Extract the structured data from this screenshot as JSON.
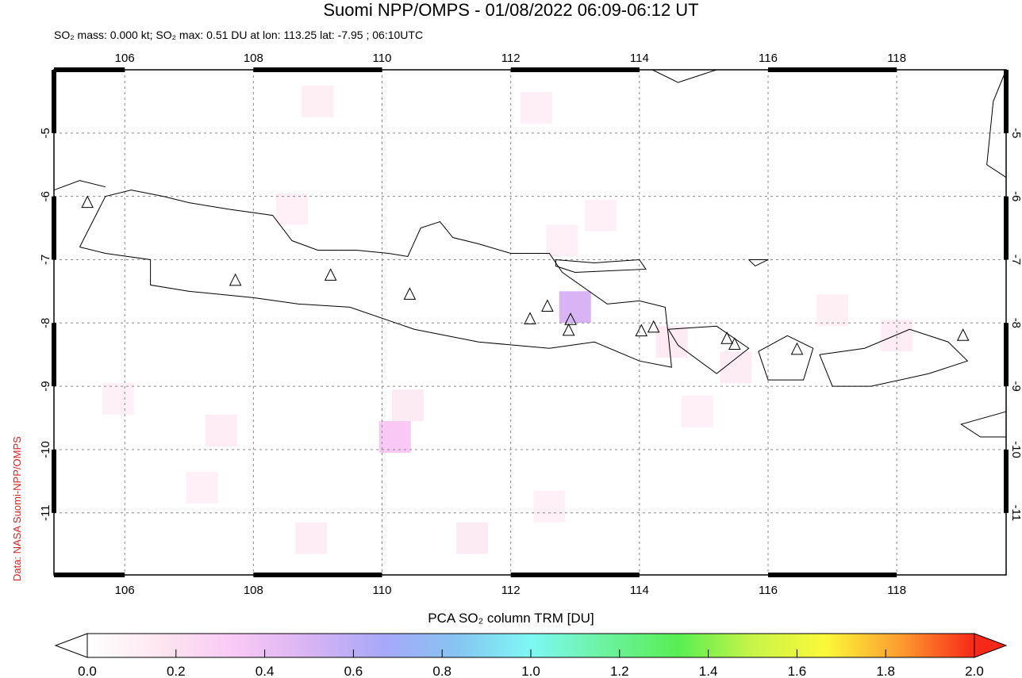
{
  "title": "Suomi NPP/OMPS - 01/08/2022 06:09-06:12 UT",
  "subtitle": "SO₂ mass: 0.000 kt; SO₂ max: 0.51 DU at lon: 113.25 lat: -7.95 ; 06:10UTC",
  "credit": "Data: NASA Suomi-NPP/OMPS",
  "colorbar": {
    "title": "PCA SO₂ column TRM [DU]",
    "ticks": [
      "0.0",
      "0.2",
      "0.4",
      "0.6",
      "0.8",
      "1.0",
      "1.2",
      "1.4",
      "1.6",
      "1.8",
      "2.0"
    ],
    "range": [
      0,
      2
    ],
    "stops": [
      "#ffffff",
      "#fde6f0",
      "#f9c8f5",
      "#d8b4f4",
      "#a8a8f8",
      "#86c4f2",
      "#7ef8f4",
      "#6cf2a0",
      "#58ee52",
      "#c8f448",
      "#fcf838",
      "#fc9c30",
      "#f82818"
    ]
  },
  "map": {
    "lon_range": [
      104.9,
      119.7
    ],
    "lat_range": [
      -11.98,
      -4.0
    ],
    "lon_ticks": [
      "106",
      "108",
      "110",
      "112",
      "114",
      "116",
      "118"
    ],
    "lat_ticks": [
      "-5",
      "-6",
      "-7",
      "-8",
      "-9",
      "-10",
      "-11"
    ],
    "volcanoes": [
      [
        105.42,
        -6.1
      ],
      [
        107.72,
        -7.33
      ],
      [
        109.2,
        -7.25
      ],
      [
        110.43,
        -7.55
      ],
      [
        112.3,
        -7.94
      ],
      [
        112.57,
        -7.74
      ],
      [
        112.93,
        -7.95
      ],
      [
        112.9,
        -8.12
      ],
      [
        114.03,
        -8.13
      ],
      [
        114.22,
        -8.07
      ],
      [
        115.36,
        -8.25
      ],
      [
        115.48,
        -8.34
      ],
      [
        116.45,
        -8.42
      ],
      [
        119.03,
        -8.2
      ]
    ],
    "so2_cells": [
      [
        113.0,
        -7.75,
        0.51
      ],
      [
        114.5,
        -8.3,
        0.22
      ],
      [
        115.5,
        -8.7,
        0.18
      ],
      [
        117.0,
        -7.8,
        0.12
      ],
      [
        118.0,
        -8.2,
        0.15
      ],
      [
        110.2,
        -9.8,
        0.3
      ],
      [
        110.4,
        -9.3,
        0.2
      ],
      [
        107.5,
        -9.7,
        0.15
      ],
      [
        108.9,
        -11.4,
        0.15
      ],
      [
        111.4,
        -11.4,
        0.2
      ],
      [
        105.9,
        -9.2,
        0.1
      ],
      [
        112.8,
        -6.7,
        0.1
      ],
      [
        112.4,
        -4.6,
        0.14
      ],
      [
        109.0,
        -4.5,
        0.12
      ],
      [
        108.6,
        -6.2,
        0.1
      ],
      [
        113.4,
        -6.3,
        0.1
      ],
      [
        116.9,
        -10.3,
        0.08
      ],
      [
        114.9,
        -9.4,
        0.1
      ],
      [
        112.6,
        -10.9,
        0.1
      ],
      [
        107.2,
        -10.6,
        0.1
      ],
      [
        117.9,
        -7.5,
        0.08
      ]
    ],
    "coastlines": [
      [
        [
          105.3,
          -6.8
        ],
        [
          105.7,
          -6.0
        ],
        [
          106.1,
          -5.9
        ],
        [
          106.6,
          -6.0
        ],
        [
          107.0,
          -6.1
        ],
        [
          107.6,
          -6.2
        ],
        [
          108.3,
          -6.3
        ],
        [
          108.6,
          -6.7
        ],
        [
          109.0,
          -6.85
        ],
        [
          109.6,
          -6.85
        ],
        [
          110.1,
          -6.9
        ],
        [
          110.4,
          -6.95
        ],
        [
          110.6,
          -6.5
        ],
        [
          110.9,
          -6.4
        ],
        [
          111.1,
          -6.65
        ],
        [
          111.5,
          -6.75
        ],
        [
          112.0,
          -6.9
        ],
        [
          112.6,
          -6.9
        ],
        [
          112.8,
          -7.2
        ],
        [
          113.5,
          -7.7
        ],
        [
          114.0,
          -7.65
        ],
        [
          114.4,
          -7.75
        ],
        [
          114.45,
          -8.2
        ],
        [
          114.5,
          -8.7
        ],
        [
          114.0,
          -8.6
        ],
        [
          113.3,
          -8.3
        ],
        [
          112.6,
          -8.4
        ],
        [
          111.5,
          -8.3
        ],
        [
          110.5,
          -8.1
        ],
        [
          109.5,
          -7.75
        ],
        [
          108.7,
          -7.7
        ],
        [
          108.0,
          -7.6
        ],
        [
          107.0,
          -7.5
        ],
        [
          106.4,
          -7.4
        ],
        [
          106.4,
          -7.0
        ],
        [
          105.7,
          -6.9
        ],
        [
          105.3,
          -6.8
        ]
      ],
      [
        [
          112.7,
          -7.0
        ],
        [
          113.3,
          -7.05
        ],
        [
          114.0,
          -7.0
        ],
        [
          114.1,
          -7.15
        ],
        [
          113.0,
          -7.2
        ],
        [
          112.7,
          -7.1
        ],
        [
          112.7,
          -7.0
        ]
      ],
      [
        [
          114.45,
          -8.1
        ],
        [
          115.2,
          -8.05
        ],
        [
          115.7,
          -8.4
        ],
        [
          115.2,
          -8.8
        ],
        [
          114.6,
          -8.35
        ],
        [
          114.45,
          -8.1
        ]
      ],
      [
        [
          115.85,
          -8.45
        ],
        [
          116.3,
          -8.2
        ],
        [
          116.7,
          -8.4
        ],
        [
          116.55,
          -8.9
        ],
        [
          116.0,
          -8.9
        ],
        [
          115.85,
          -8.45
        ]
      ],
      [
        [
          116.8,
          -8.5
        ],
        [
          117.5,
          -8.4
        ],
        [
          118.2,
          -8.1
        ],
        [
          118.8,
          -8.3
        ],
        [
          119.1,
          -8.6
        ],
        [
          118.5,
          -8.8
        ],
        [
          117.6,
          -9.0
        ],
        [
          117.0,
          -9.0
        ],
        [
          116.8,
          -8.5
        ]
      ],
      [
        [
          104.9,
          -5.9
        ],
        [
          105.3,
          -5.75
        ],
        [
          105.7,
          -5.85
        ]
      ],
      [
        [
          119.7,
          -4.0
        ],
        [
          119.5,
          -4.5
        ],
        [
          119.4,
          -5.5
        ],
        [
          119.7,
          -5.7
        ]
      ],
      [
        [
          114.2,
          -4.0
        ],
        [
          114.6,
          -4.2
        ],
        [
          115.2,
          -4.0
        ]
      ],
      [
        [
          119.7,
          -9.4
        ],
        [
          119.0,
          -9.6
        ],
        [
          119.3,
          -9.8
        ],
        [
          119.7,
          -9.8
        ]
      ],
      [
        [
          115.7,
          -7.0
        ],
        [
          116.0,
          -7.0
        ],
        [
          115.8,
          -7.1
        ],
        [
          115.7,
          -7.0
        ]
      ]
    ]
  }
}
